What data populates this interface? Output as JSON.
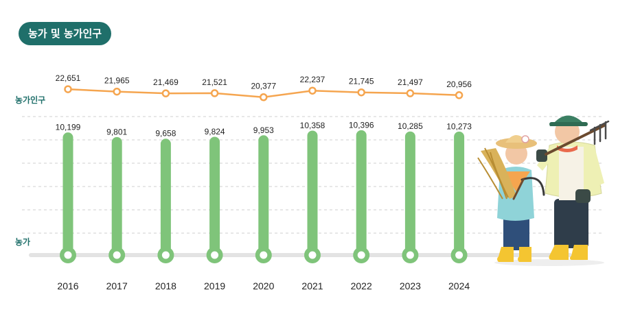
{
  "title": "농가 및 농가인구",
  "chart_data": {
    "type": "bar",
    "categories": [
      "2016",
      "2017",
      "2018",
      "2019",
      "2020",
      "2021",
      "2022",
      "2023",
      "2024"
    ],
    "series": [
      {
        "name": "농가인구",
        "type": "line",
        "values": [
          22651,
          21965,
          21469,
          21521,
          20377,
          22237,
          21745,
          21497,
          20956
        ],
        "labels": [
          "22,651",
          "21,965",
          "21,469",
          "21,521",
          "20,377",
          "22,237",
          "21,745",
          "21,497",
          "20,956"
        ],
        "color": "#f5a54f"
      },
      {
        "name": "농가",
        "type": "bar",
        "values": [
          10199,
          9801,
          9658,
          9824,
          9953,
          10358,
          10396,
          10285,
          10273
        ],
        "labels": [
          "10,199",
          "9,801",
          "9,658",
          "9,824",
          "9,953",
          "10,358",
          "10,396",
          "10,285",
          "10,273"
        ],
        "color": "#7fc47a"
      }
    ],
    "grid": true,
    "legend": "inline-left"
  },
  "colors": {
    "accent": "#1f6f6a",
    "bar": "#7fc47a",
    "line": "#f5a54f",
    "baseline": "#e3e3e3"
  }
}
